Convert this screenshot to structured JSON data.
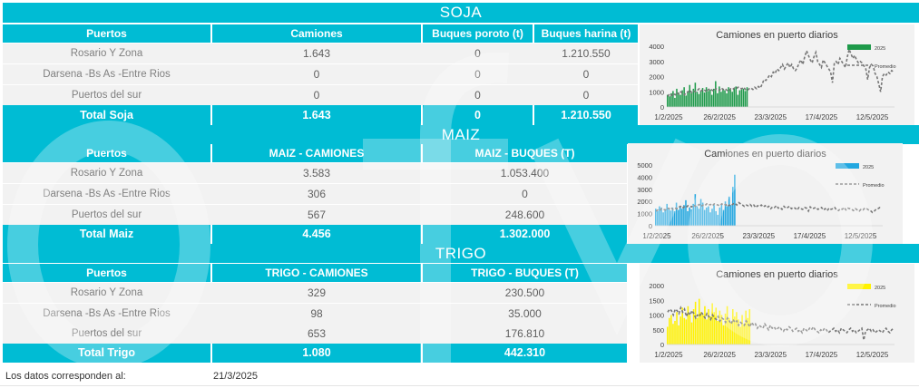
{
  "colors": {
    "accent": "#00bcd4",
    "soja": "#1e9a4a",
    "maiz": "#22a7e0",
    "trigo": "#fff200",
    "promedio": "#777777"
  },
  "soja": {
    "title": "SOJA",
    "headers": [
      "Puertos",
      "Camiones",
      "Buques poroto (t)",
      "Buques harina (t)"
    ],
    "rows": [
      {
        "puerto": "Rosario Y Zona",
        "camiones": "1.643",
        "poroto": "0",
        "harina": "1.210.550"
      },
      {
        "puerto": "Darsena -Bs As -Entre Rios",
        "camiones": "0",
        "poroto": "0",
        "harina": "0"
      },
      {
        "puerto": "Puertos del sur",
        "camiones": "0",
        "poroto": "0",
        "harina": "0"
      }
    ],
    "total": {
      "label": "Total Soja",
      "camiones": "1.643",
      "poroto": "0",
      "harina": "1.210.550"
    }
  },
  "maiz": {
    "title": "MAIZ",
    "headers": [
      "Puertos",
      "MAIZ - CAMIONES",
      "MAIZ - BUQUES (T)"
    ],
    "rows": [
      {
        "puerto": "Rosario Y Zona",
        "camiones": "3.583",
        "buques": "1.053.400"
      },
      {
        "puerto": "Darsena -Bs As -Entre Rios",
        "camiones": "306",
        "buques": "0"
      },
      {
        "puerto": "Puertos del sur",
        "camiones": "567",
        "buques": "248.600"
      }
    ],
    "total": {
      "label": "Total Maiz",
      "camiones": "4.456",
      "buques": "1.302.000"
    }
  },
  "trigo": {
    "title": "TRIGO",
    "headers": [
      "Puertos",
      "TRIGO - CAMIONES",
      "TRIGO - BUQUES (T)"
    ],
    "rows": [
      {
        "puerto": "Rosario Y Zona",
        "camiones": "329",
        "buques": "230.500"
      },
      {
        "puerto": "Darsena -Bs As -Entre Rios",
        "camiones": "98",
        "buques": "35.000"
      },
      {
        "puerto": "Puertos del sur",
        "camiones": "653",
        "buques": "176.810"
      }
    ],
    "total": {
      "label": "Total Trigo",
      "camiones": "1.080",
      "buques": "442.310"
    }
  },
  "footer": {
    "label": "Los datos corresponden al:",
    "date": "21/3/2025"
  },
  "chart_data": [
    {
      "id": "soja",
      "type": "bar",
      "title": "Camiones en puerto diarios",
      "x_ticks": [
        "1/2/2025",
        "26/2/2025",
        "23/3/2025",
        "17/4/2025",
        "12/5/2025"
      ],
      "y_ticks": [
        0,
        1000,
        2000,
        3000,
        4000
      ],
      "ylim": [
        0,
        4000
      ],
      "legend": "top-right",
      "series": [
        {
          "name": "2025",
          "kind": "bar",
          "color": "#1e9a4a",
          "values": [
            800,
            700,
            900,
            1050,
            600,
            1200,
            950,
            800,
            1100,
            1300,
            750,
            1050,
            1450,
            900,
            1200,
            1600,
            1000,
            850,
            1100,
            1250,
            950,
            1300,
            1050,
            1150,
            800,
            1200,
            1700,
            900,
            1350,
            1000,
            1200,
            1100,
            900,
            1300,
            1150,
            1000,
            1250,
            1350,
            800,
            1100,
            1150,
            1200,
            1050,
            1300
          ]
        },
        {
          "name": "Promedio",
          "kind": "line",
          "color": "#777777",
          "values": [
            700,
            850,
            750,
            900,
            800,
            950,
            850,
            1000,
            900,
            800,
            950,
            1000,
            1100,
            950,
            1050,
            1000,
            1100,
            1200,
            1050,
            1150,
            1100,
            1000,
            1150,
            1200,
            1100,
            1050,
            1200,
            1150,
            1100,
            1250,
            1150,
            1200,
            1100,
            1050,
            1200,
            1150,
            1250,
            1200,
            1300,
            1250,
            1200,
            1300,
            1150,
            1100,
            1200,
            1250,
            1150,
            1300,
            1200,
            1350,
            1250,
            1500,
            1800,
            1750,
            1900,
            2100,
            2000,
            2300,
            2200,
            2500,
            2400,
            2600,
            2800,
            2500,
            2700,
            2900,
            2600,
            2800,
            2500,
            2400,
            2600,
            2900,
            3100,
            2800,
            3300,
            3700,
            3400,
            3100,
            2900,
            3300,
            3600,
            3000,
            2800,
            2600,
            3100,
            2900,
            2700,
            2500,
            2300,
            1600,
            2900,
            3000,
            2800,
            3200,
            3000,
            2800,
            2600,
            3300,
            3800,
            3500,
            3200,
            3400,
            3100,
            2900,
            3000,
            2900,
            2700,
            2500,
            1800,
            2600,
            2800,
            2700,
            2200,
            2000,
            1500,
            1000,
            2000,
            2200,
            2100,
            2300,
            2200,
            2400,
            2300
          ]
        }
      ]
    },
    {
      "id": "maiz",
      "type": "bar",
      "title": "Camiones en puerto diarios",
      "x_ticks": [
        "1/2/2025",
        "26/2/2025",
        "23/3/2025",
        "17/4/2025",
        "12/5/2025"
      ],
      "y_ticks": [
        0,
        1000,
        2000,
        3000,
        4000,
        5000
      ],
      "ylim": [
        0,
        5000
      ],
      "legend": "top-right",
      "series": [
        {
          "name": "2025",
          "kind": "bar",
          "color": "#22a7e0",
          "values": [
            1400,
            1200,
            1600,
            1500,
            1100,
            1300,
            1800,
            1400,
            1250,
            1500,
            1200,
            1900,
            1300,
            1600,
            1400,
            1700,
            2100,
            1200,
            1500,
            1350,
            1800,
            2600,
            1600,
            1400,
            2200,
            1900,
            1300,
            1500,
            1600,
            1100,
            1400,
            1700,
            1200,
            900,
            1500,
            1800,
            1300,
            2000,
            1600,
            2400,
            1700,
            3200,
            4200
          ]
        },
        {
          "name": "Promedio",
          "kind": "line",
          "color": "#777777",
          "values": [
            1200,
            1300,
            1250,
            1400,
            1350,
            1300,
            1450,
            1400,
            1500,
            1350,
            1450,
            1400,
            1500,
            1600,
            1450,
            1550,
            1500,
            1650,
            1600,
            1550,
            1700,
            1600,
            1650,
            1750,
            1600,
            1700,
            1650,
            1800,
            1700,
            1750,
            1650,
            1800,
            1750,
            1700,
            1650,
            1800,
            1700,
            1750,
            1600,
            1700,
            1650,
            1800,
            1850,
            1700,
            1900,
            1800,
            1700,
            1600,
            1700,
            1650,
            1750,
            1600,
            1700,
            1500,
            1650,
            1600,
            1700,
            1550,
            1650,
            1500,
            1600,
            1400,
            1550,
            1500,
            1650,
            1450,
            1500,
            1350,
            1600,
            1450,
            1500,
            1600,
            1400,
            1500,
            1450,
            1300,
            1500,
            1400,
            1350,
            1500,
            1450,
            1200,
            1550,
            1400,
            1450,
            1500,
            1350,
            1400,
            1500,
            1300,
            1400,
            1250,
            1450,
            1350,
            1400,
            1500,
            1300,
            1250,
            1400,
            1350,
            1500,
            1300,
            1450,
            1400,
            1350,
            1250,
            1400,
            1300,
            1200,
            1350,
            1300,
            1450,
            1400,
            1300,
            1250,
            1100,
            1200,
            1350,
            1400,
            1500,
            1450
          ]
        }
      ]
    },
    {
      "id": "trigo",
      "type": "bar",
      "title": "Camiones en puerto diarios",
      "x_ticks": [
        "1/2/2025",
        "26/2/2025",
        "23/3/2025",
        "17/4/2025",
        "12/5/2025"
      ],
      "y_ticks": [
        0,
        500,
        1000,
        1500,
        2000
      ],
      "ylim": [
        0,
        2000
      ],
      "legend": "top-right",
      "series": [
        {
          "name": "2025",
          "kind": "bar",
          "color": "#fff200",
          "values": [
            600,
            900,
            1000,
            700,
            800,
            1100,
            650,
            950,
            1250,
            900,
            850,
            1300,
            1000,
            750,
            1200,
            1450,
            900,
            1550,
            1100,
            1000,
            1300,
            850,
            1200,
            950,
            1400,
            1100,
            1250,
            800,
            1150,
            1000,
            650,
            1050,
            1300,
            900,
            750,
            1200,
            950,
            1100,
            850,
            600,
            1000,
            700,
            1150,
            900,
            1200
          ]
        },
        {
          "name": "Promedio",
          "kind": "line",
          "color": "#777777",
          "values": [
            1100,
            1200,
            1150,
            1000,
            1200,
            1150,
            1050,
            1250,
            1100,
            1200,
            950,
            1100,
            1000,
            1150,
            1050,
            900,
            1000,
            950,
            1100,
            1000,
            900,
            1050,
            950,
            850,
            1000,
            900,
            850,
            950,
            800,
            900,
            850,
            750,
            900,
            800,
            700,
            850,
            750,
            800,
            650,
            750,
            700,
            650,
            800,
            700,
            600,
            750,
            650,
            700,
            550,
            650,
            600,
            550,
            700,
            600,
            500,
            650,
            550,
            600,
            500,
            550,
            600,
            500,
            450,
            550,
            500,
            600,
            550,
            450,
            500,
            550,
            450,
            500,
            400,
            550,
            500,
            450,
            550,
            500,
            600,
            500,
            450,
            400,
            500,
            450,
            550,
            500,
            400,
            450,
            500,
            550,
            450,
            500,
            400,
            550,
            500,
            450,
            400,
            500,
            550,
            450,
            500,
            400,
            450,
            500,
            550,
            150,
            450,
            500,
            550,
            450,
            500,
            400,
            450,
            500,
            450,
            400,
            500,
            550,
            450,
            400,
            500,
            550
          ]
        }
      ]
    }
  ]
}
